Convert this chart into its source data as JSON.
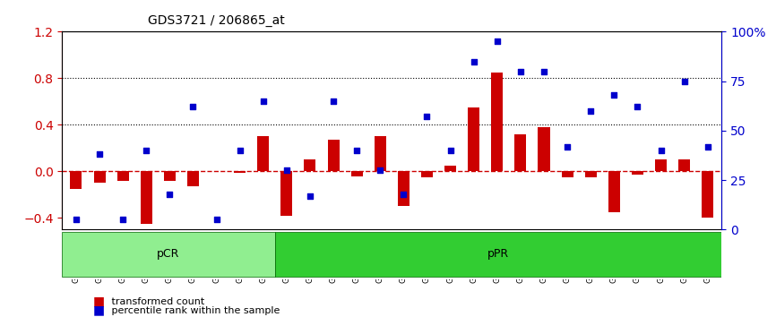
{
  "title": "GDS3721 / 206865_at",
  "samples": [
    "GSM559062",
    "GSM559063",
    "GSM559064",
    "GSM559065",
    "GSM559066",
    "GSM559067",
    "GSM559068",
    "GSM559069",
    "GSM559042",
    "GSM559043",
    "GSM559044",
    "GSM559045",
    "GSM559046",
    "GSM559047",
    "GSM559048",
    "GSM559049",
    "GSM559050",
    "GSM559051",
    "GSM559052",
    "GSM559053",
    "GSM559054",
    "GSM559055",
    "GSM559056",
    "GSM559057",
    "GSM559058",
    "GSM559059",
    "GSM559060",
    "GSM559061"
  ],
  "transformed_count": [
    -0.15,
    -0.1,
    -0.08,
    -0.45,
    -0.08,
    -0.13,
    0.0,
    -0.01,
    0.3,
    -0.38,
    0.1,
    0.27,
    -0.04,
    0.3,
    -0.3,
    -0.05,
    0.05,
    0.55,
    0.85,
    0.32,
    0.38,
    -0.05,
    -0.05,
    -0.35,
    -0.03,
    0.1,
    0.1,
    -0.4
  ],
  "percentile_rank": [
    0.05,
    0.38,
    0.05,
    0.4,
    0.18,
    0.62,
    0.05,
    0.4,
    0.65,
    0.3,
    0.17,
    0.65,
    0.4,
    0.3,
    0.18,
    0.57,
    0.4,
    0.85,
    0.95,
    0.8,
    0.8,
    0.42,
    0.6,
    0.68,
    0.62,
    0.4,
    0.75,
    0.42
  ],
  "group_labels": [
    "pCR",
    "pPR"
  ],
  "group_sizes": [
    9,
    19
  ],
  "group_colors": [
    "#90EE90",
    "#32CD32"
  ],
  "ylim_left": [
    -0.5,
    1.2
  ],
  "ylim_right": [
    0,
    1.0
  ],
  "yticks_left": [
    -0.4,
    0.0,
    0.4,
    0.8,
    1.2
  ],
  "yticks_right": [
    0.0,
    0.25,
    0.5,
    0.75,
    1.0
  ],
  "ytick_labels_right": [
    "0",
    "25",
    "50",
    "75",
    "100%"
  ],
  "bar_color": "#CC0000",
  "dot_color": "#0000CC",
  "zero_line_color": "#CC0000",
  "hline_color": "black",
  "hlines": [
    0.4,
    0.8
  ],
  "background_color": "#ffffff"
}
